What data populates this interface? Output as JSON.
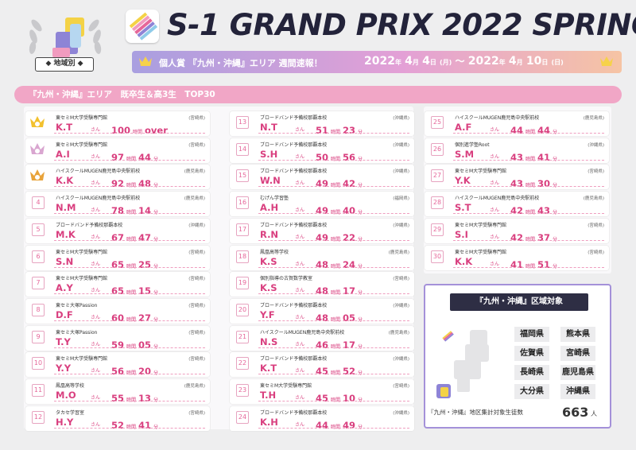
{
  "header": {
    "badge_label": "◆ 地域別 ◆",
    "title": "S-1 GRAND PRIX 2022 SPRING",
    "subtitle": "個人賞 『九州・沖縄』エリア 週間速報！",
    "date_from_year": "2022",
    "date_from_md_month": "4",
    "date_from_day": "4",
    "date_from_dow": "(月)",
    "date_tilde": "〜",
    "date_to_year": "2022",
    "date_to_month": "4",
    "date_to_day": "10",
    "date_to_dow": "(日)",
    "label_year": "年",
    "label_month": "月",
    "label_day": "日"
  },
  "section_title": "『九州・沖縄』エリア　既卒生＆高3生　TOP30",
  "units": {
    "san": "さん",
    "hours": "時間",
    "minutes": "分"
  },
  "colors": {
    "accent": "#d93f7f",
    "section": "#f1a6c6",
    "purple": "#a491d9",
    "dark": "#2e2e44"
  },
  "ranking": [
    {
      "rank": "1",
      "school": "東セミM大学受験専門館",
      "pref": "(宮崎県)",
      "name": "K.T",
      "hours": "100",
      "minutes": "over",
      "icon": "gold-crown"
    },
    {
      "rank": "2",
      "school": "東セミM大学受験専門館",
      "pref": "(宮崎県)",
      "name": "A.I",
      "hours": "97",
      "minutes": "44",
      "icon": "silver-crown"
    },
    {
      "rank": "3",
      "school": "ハイスクールMUGEN鹿児島中央駅前校",
      "pref": "(鹿児島県)",
      "name": "K.K",
      "hours": "92",
      "minutes": "48",
      "icon": "bronze-crown"
    },
    {
      "rank": "4",
      "school": "ハイスクールMUGEN鹿児島中央駅前校",
      "pref": "(鹿児島県)",
      "name": "N.M",
      "hours": "78",
      "minutes": "14"
    },
    {
      "rank": "5",
      "school": "ブロードバンド予備校那覇本校",
      "pref": "(沖縄県)",
      "name": "M.K",
      "hours": "67",
      "minutes": "47"
    },
    {
      "rank": "6",
      "school": "東セミM大学受験専門館",
      "pref": "(宮崎県)",
      "name": "S.N",
      "hours": "65",
      "minutes": "25"
    },
    {
      "rank": "7",
      "school": "東セミM大学受験専門館",
      "pref": "(宮崎県)",
      "name": "A.Y",
      "hours": "65",
      "minutes": "15"
    },
    {
      "rank": "8",
      "school": "東セミ大塚Passion",
      "pref": "(宮崎県)",
      "name": "D.F",
      "hours": "60",
      "minutes": "27"
    },
    {
      "rank": "9",
      "school": "東セミ大塚Passion",
      "pref": "(宮崎県)",
      "name": "T.Y",
      "hours": "59",
      "minutes": "05"
    },
    {
      "rank": "10",
      "school": "東セミM大学受験専門館",
      "pref": "(宮崎県)",
      "name": "Y.Y",
      "hours": "56",
      "minutes": "20"
    },
    {
      "rank": "11",
      "school": "鳳凰高等学校",
      "pref": "(鹿児島県)",
      "name": "M.O",
      "hours": "55",
      "minutes": "13"
    },
    {
      "rank": "12",
      "school": "タカセ学習室",
      "pref": "(宮崎県)",
      "name": "H.Y",
      "hours": "52",
      "minutes": "41"
    },
    {
      "rank": "13",
      "school": "ブロードバンド予備校那覇本校",
      "pref": "(沖縄県)",
      "name": "N.T",
      "hours": "51",
      "minutes": "23"
    },
    {
      "rank": "14",
      "school": "ブロードバンド予備校那覇本校",
      "pref": "(沖縄県)",
      "name": "S.H",
      "hours": "50",
      "minutes": "56"
    },
    {
      "rank": "15",
      "school": "ブロードバンド予備校那覇本校",
      "pref": "(沖縄県)",
      "name": "W.N",
      "hours": "49",
      "minutes": "42"
    },
    {
      "rank": "16",
      "school": "むげん学習塾",
      "pref": "(福岡県)",
      "name": "A.H",
      "hours": "49",
      "minutes": "40"
    },
    {
      "rank": "17",
      "school": "ブロードバンド予備校那覇本校",
      "pref": "(沖縄県)",
      "name": "R.N",
      "hours": "49",
      "minutes": "22"
    },
    {
      "rank": "18",
      "school": "鳳凰高等学校",
      "pref": "(鹿児島県)",
      "name": "K.S",
      "hours": "48",
      "minutes": "24"
    },
    {
      "rank": "19",
      "school": "個別指導の古賀数学教室",
      "pref": "(宮崎県)",
      "name": "K.S",
      "hours": "48",
      "minutes": "17"
    },
    {
      "rank": "20",
      "school": "ブロードバンド予備校那覇本校",
      "pref": "(沖縄県)",
      "name": "Y.F",
      "hours": "48",
      "minutes": "05"
    },
    {
      "rank": "21",
      "school": "ハイスクールMUGEN鹿児島中央駅前校",
      "pref": "(鹿児島県)",
      "name": "N.S",
      "hours": "46",
      "minutes": "17"
    },
    {
      "rank": "22",
      "school": "ブロードバンド予備校那覇本校",
      "pref": "(沖縄県)",
      "name": "K.T",
      "hours": "45",
      "minutes": "52"
    },
    {
      "rank": "23",
      "school": "東セミM大学受験専門館",
      "pref": "(宮崎県)",
      "name": "T.H",
      "hours": "45",
      "minutes": "10"
    },
    {
      "rank": "24",
      "school": "ブロードバンド予備校那覇本校",
      "pref": "(沖縄県)",
      "name": "K.H",
      "hours": "44",
      "minutes": "49"
    },
    {
      "rank": "25",
      "school": "ハイスクールMUGEN鹿児島中央駅前校",
      "pref": "(鹿児島県)",
      "name": "A.F",
      "hours": "44",
      "minutes": "44"
    },
    {
      "rank": "26",
      "school": "個別進学塾Root",
      "pref": "(沖縄県)",
      "name": "S.M",
      "hours": "43",
      "minutes": "41"
    },
    {
      "rank": "27",
      "school": "東セミM大学受験専門館",
      "pref": "(宮崎県)",
      "name": "Y.K",
      "hours": "43",
      "minutes": "30"
    },
    {
      "rank": "28",
      "school": "ハイスクールMUGEN鹿児島中央駅前校",
      "pref": "(鹿児島県)",
      "name": "S.T",
      "hours": "42",
      "minutes": "43"
    },
    {
      "rank": "29",
      "school": "東セミM大学受験専門館",
      "pref": "(宮崎県)",
      "name": "S.I",
      "hours": "42",
      "minutes": "37"
    },
    {
      "rank": "30",
      "school": "東セミM大学受験専門館",
      "pref": "(宮崎県)",
      "name": "K.K",
      "hours": "41",
      "minutes": "51"
    }
  ],
  "area": {
    "heading": "『九州・沖縄』区域対象",
    "prefectures": [
      "福岡県",
      "熊本県",
      "佐賀県",
      "宮崎県",
      "長崎県",
      "鹿児島県",
      "大分県",
      "沖縄県"
    ],
    "footer_label": "『九州・沖縄』地区集計対象生徒数",
    "count": "663",
    "count_unit": "人"
  }
}
